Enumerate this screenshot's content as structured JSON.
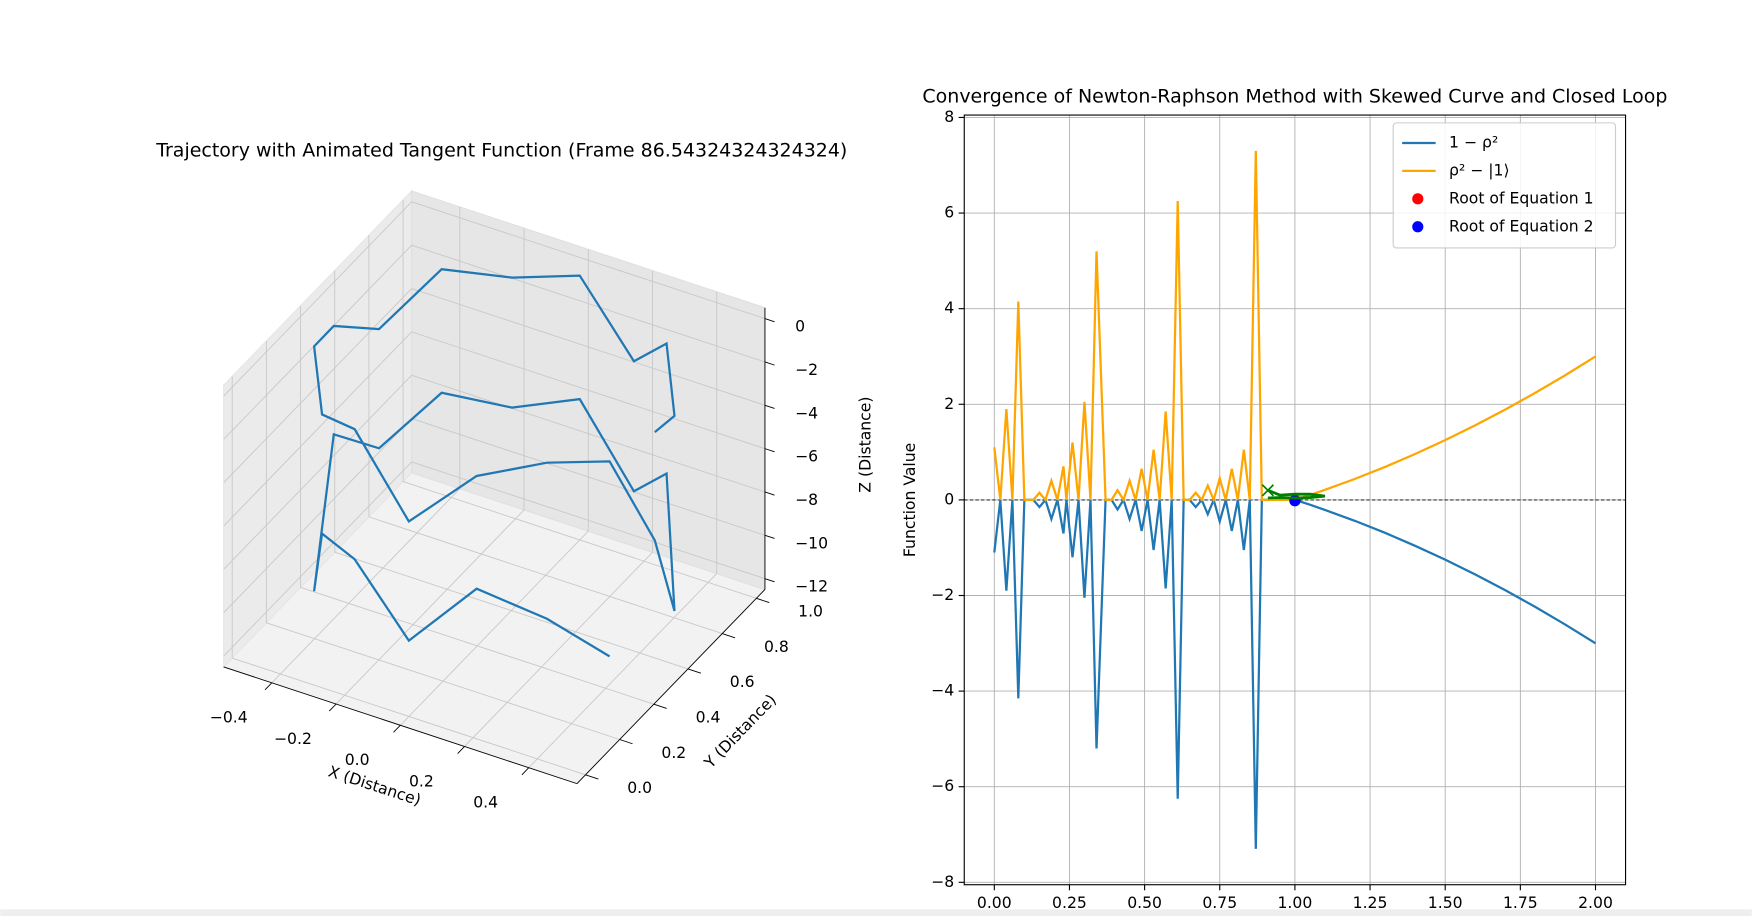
{
  "chart_data": [
    {
      "type": "line3d",
      "title": "Trajectory with Animated Tangent Function (Frame 86.54324324324324)",
      "xlabel": "X (Distance)",
      "ylabel": "Y (Distance)",
      "zlabel": "Z (Distance)",
      "color": "#1f77b4",
      "x": [
        0.5,
        0.46,
        0.35,
        0.19,
        0,
        -0.19,
        -0.35,
        -0.46,
        -0.5,
        -0.46,
        -0.35,
        -0.19,
        0,
        0.19,
        0.35,
        0.46,
        0.5,
        0.46,
        0.35,
        0.19,
        0,
        -0.19,
        -0.35,
        -0.46,
        -0.5,
        -0.46,
        -0.35,
        -0.19,
        0,
        0.19,
        0.35,
        0.46
      ],
      "y": [
        0.5,
        0.69,
        0.85,
        0.96,
        1,
        0.96,
        0.85,
        0.69,
        0.5,
        0.31,
        0.15,
        0.04,
        0,
        0.04,
        0.15,
        0.31,
        0.5,
        0.69,
        0.85,
        0.96,
        1,
        0.96,
        0.85,
        0.69,
        0.5,
        0.31,
        0.15,
        0.04,
        0,
        0.04,
        0.15,
        0.31
      ],
      "z": [
        -1,
        -2,
        -0.5,
        -3,
        -0.3,
        -1,
        -0.5,
        -2.5,
        -1,
        -0.2,
        -1.5,
        -0.5,
        -3.5,
        -0.8,
        -0.3,
        -1,
        -6,
        -11,
        -6.5,
        -9,
        -6,
        -7,
        -6.2,
        -8,
        -6,
        -11.5,
        -7,
        -6.5,
        -9,
        -6,
        -7.5,
        -10
      ],
      "xlim": [
        -0.55,
        0.55
      ],
      "ylim": [
        -0.05,
        1.05
      ],
      "zlim": [
        -12.5,
        0.5
      ],
      "xticks": [
        {
          "value": -0.4,
          "label": "−0.4"
        },
        {
          "value": -0.2,
          "label": "−0.2"
        },
        {
          "value": 0,
          "label": "0.0"
        },
        0.2,
        0.4
      ],
      "yticks": [
        {
          "value": 0,
          "label": "0.0"
        },
        0.2,
        0.4,
        0.6,
        0.8,
        {
          "value": 1,
          "label": "1.0"
        }
      ],
      "zticks": [
        0,
        {
          "value": -2,
          "label": "−2"
        },
        {
          "value": -4,
          "label": "−4"
        },
        {
          "value": -6,
          "label": "−6"
        },
        {
          "value": -8,
          "label": "−8"
        },
        {
          "value": -10,
          "label": "−10"
        },
        {
          "value": -12,
          "label": "−12"
        }
      ],
      "grid": true
    },
    {
      "type": "line",
      "title": "Convergence of Newton-Raphson Method with Skewed Curve and Closed Loop",
      "ylabel": "Function Value",
      "x": [
        0,
        0.02,
        0.04,
        0.06,
        0.08,
        0.1,
        0.13,
        0.15,
        0.17,
        0.19,
        0.21,
        0.23,
        0.24,
        0.26,
        0.28,
        0.3,
        0.32,
        0.34,
        0.37,
        0.39,
        0.41,
        0.43,
        0.45,
        0.47,
        0.49,
        0.51,
        0.53,
        0.55,
        0.57,
        0.59,
        0.61,
        0.63,
        0.65,
        0.67,
        0.69,
        0.71,
        0.73,
        0.75,
        0.77,
        0.79,
        0.81,
        0.83,
        0.85,
        0.87,
        0.89,
        0.91,
        0.95,
        1.0,
        1.05,
        1.1,
        1.2,
        1.3,
        1.4,
        1.5,
        1.6,
        1.7,
        1.8,
        1.9,
        2.0
      ],
      "series": [
        {
          "name": "1 − ρ²",
          "color": "#1f77b4",
          "values": [
            -1.1,
            0,
            -1.9,
            0,
            -4.15,
            0,
            0,
            -0.15,
            0,
            -0.4,
            0,
            -0.7,
            0,
            -1.2,
            0,
            -2.05,
            0,
            -5.2,
            0,
            0,
            -0.2,
            0,
            -0.4,
            0,
            -0.65,
            0,
            -1.05,
            0,
            -1.85,
            0,
            -6.25,
            0,
            0,
            -0.15,
            0,
            -0.3,
            0,
            -0.45,
            0,
            -0.65,
            0,
            -1.05,
            0,
            -7.3,
            0,
            0,
            0,
            0,
            -0.1,
            -0.21,
            -0.44,
            -0.69,
            -0.96,
            -1.25,
            -1.56,
            -1.89,
            -2.24,
            -2.61,
            -3.0
          ]
        },
        {
          "name": "ρ² − |1⟩",
          "color": "orange",
          "values": [
            1.1,
            0,
            1.9,
            0,
            4.15,
            0,
            0,
            0.15,
            0,
            0.4,
            0,
            0.7,
            0,
            1.2,
            0,
            2.05,
            0,
            5.2,
            0,
            0,
            0.2,
            0,
            0.4,
            0,
            0.65,
            0,
            1.05,
            0,
            1.85,
            0,
            6.25,
            0,
            0,
            0.15,
            0,
            0.3,
            0,
            0.45,
            0,
            0.65,
            0,
            1.05,
            0,
            7.3,
            0,
            0,
            0,
            0,
            0.1,
            0.21,
            0.44,
            0.69,
            0.96,
            1.25,
            1.56,
            1.89,
            2.24,
            2.61,
            3.0
          ]
        },
        {
          "name": "Root of Equation 1",
          "color": "red",
          "type": "scatter",
          "x": [
            1.0
          ],
          "values": [
            0
          ]
        },
        {
          "name": "Root of Equation 2",
          "color": "blue",
          "type": "scatter",
          "x": [
            1.0
          ],
          "values": [
            -0.02
          ]
        }
      ],
      "loop": {
        "color": "green",
        "x": [
          0.91,
          0.95,
          1.0,
          1.05,
          1.1,
          1.05,
          1.0,
          0.95,
          0.91
        ],
        "values": [
          0.2,
          0.1,
          0.12,
          0.12,
          0.08,
          0.05,
          0.04,
          0.05,
          0.04
        ]
      },
      "hline": 0,
      "xlim": [
        -0.1,
        2.1
      ],
      "ylim": [
        -8.05,
        8.05
      ],
      "xticks": [
        {
          "value": 0,
          "label": "0.00"
        },
        0.25,
        {
          "value": 0.5,
          "label": "0.50"
        },
        0.75,
        {
          "value": 1,
          "label": "1.00"
        },
        1.25,
        {
          "value": 1.5,
          "label": "1.50"
        },
        1.75,
        {
          "value": 2,
          "label": "2.00"
        }
      ],
      "yticks": [
        {
          "value": -8,
          "label": "−8"
        },
        {
          "value": -6,
          "label": "−6"
        },
        {
          "value": -4,
          "label": "−4"
        },
        {
          "value": -2,
          "label": "−2"
        },
        0,
        2,
        4,
        6,
        8
      ],
      "grid": true,
      "legend": "upper right"
    }
  ]
}
